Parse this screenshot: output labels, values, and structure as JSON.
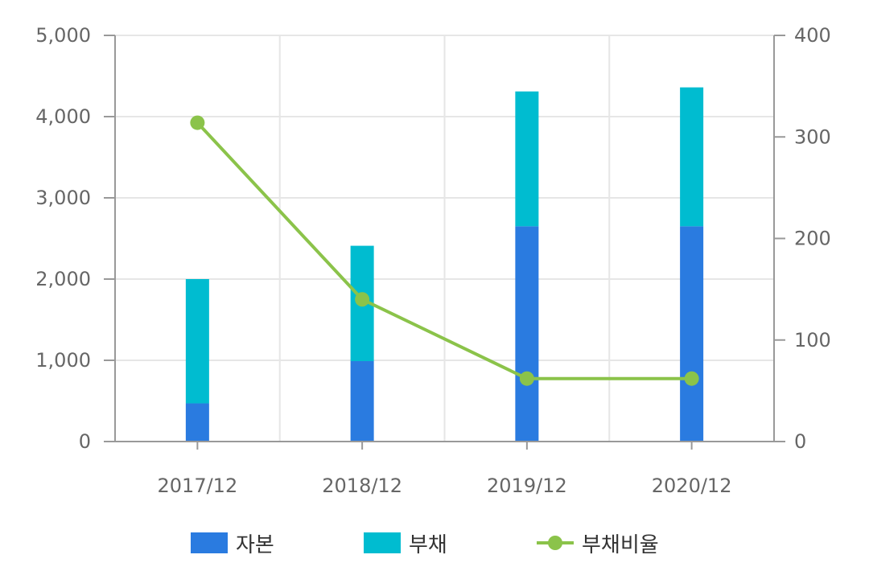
{
  "chart_data": {
    "type": "bar",
    "categories": [
      "2017/12",
      "2018/12",
      "2019/12",
      "2020/12"
    ],
    "series": [
      {
        "name": "자본",
        "kind": "bar",
        "stack": "main",
        "axis": "left",
        "color": "#2a7be0",
        "values": [
          470,
          990,
          2650,
          2650
        ]
      },
      {
        "name": "부채",
        "kind": "bar",
        "stack": "main",
        "axis": "left",
        "color": "#00bcd0",
        "values": [
          1530,
          1420,
          1660,
          1710
        ]
      },
      {
        "name": "부채비율",
        "kind": "line",
        "axis": "right",
        "color": "#8bc34a",
        "values": [
          314,
          140,
          62,
          62
        ]
      }
    ],
    "y_left": {
      "min": 0,
      "max": 5000,
      "ticks": [
        "0",
        "1,000",
        "2,000",
        "3,000",
        "4,000",
        "5,000"
      ],
      "tick_values": [
        0,
        1000,
        2000,
        3000,
        4000,
        5000
      ]
    },
    "y_right": {
      "min": 0,
      "max": 400,
      "ticks": [
        "0",
        "100",
        "200",
        "300",
        "400"
      ],
      "tick_values": [
        0,
        100,
        200,
        300,
        400
      ]
    },
    "grid": true,
    "legend_position": "bottom"
  }
}
